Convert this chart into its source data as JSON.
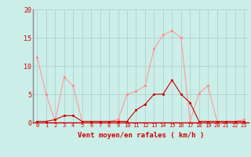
{
  "x": [
    0,
    1,
    2,
    3,
    4,
    5,
    6,
    7,
    8,
    9,
    10,
    11,
    12,
    13,
    14,
    15,
    16,
    17,
    18,
    19,
    20,
    21,
    22,
    23
  ],
  "rafales": [
    11.5,
    5.0,
    0.2,
    8.0,
    6.5,
    0.2,
    0.2,
    0.2,
    0.2,
    0.5,
    5.0,
    5.5,
    6.5,
    13.0,
    15.5,
    16.2,
    15.0,
    0.2,
    5.2,
    6.5,
    0.2,
    0.2,
    0.2,
    0.5
  ],
  "moyen": [
    0.2,
    0.2,
    0.5,
    1.2,
    1.2,
    0.2,
    0.2,
    0.2,
    0.2,
    0.2,
    0.2,
    2.2,
    3.2,
    5.0,
    5.0,
    7.5,
    5.0,
    3.5,
    0.2,
    0.2,
    0.2,
    0.2,
    0.2,
    0.2
  ],
  "bg_color": "#cceee8",
  "grid_color": "#aacccc",
  "line_color_rafales": "#ff9999",
  "line_color_moyen": "#cc0000",
  "marker_color_rafales": "#ff8888",
  "marker_color_moyen": "#cc0000",
  "xlabel": "Vent moyen/en rafales ( km/h )",
  "xlabel_color": "#cc0000",
  "tick_color": "#cc0000",
  "spine_color": "#888888",
  "ylim": [
    0,
    20
  ],
  "yticks": [
    0,
    5,
    10,
    15,
    20
  ],
  "xlim": [
    -0.5,
    23.5
  ]
}
